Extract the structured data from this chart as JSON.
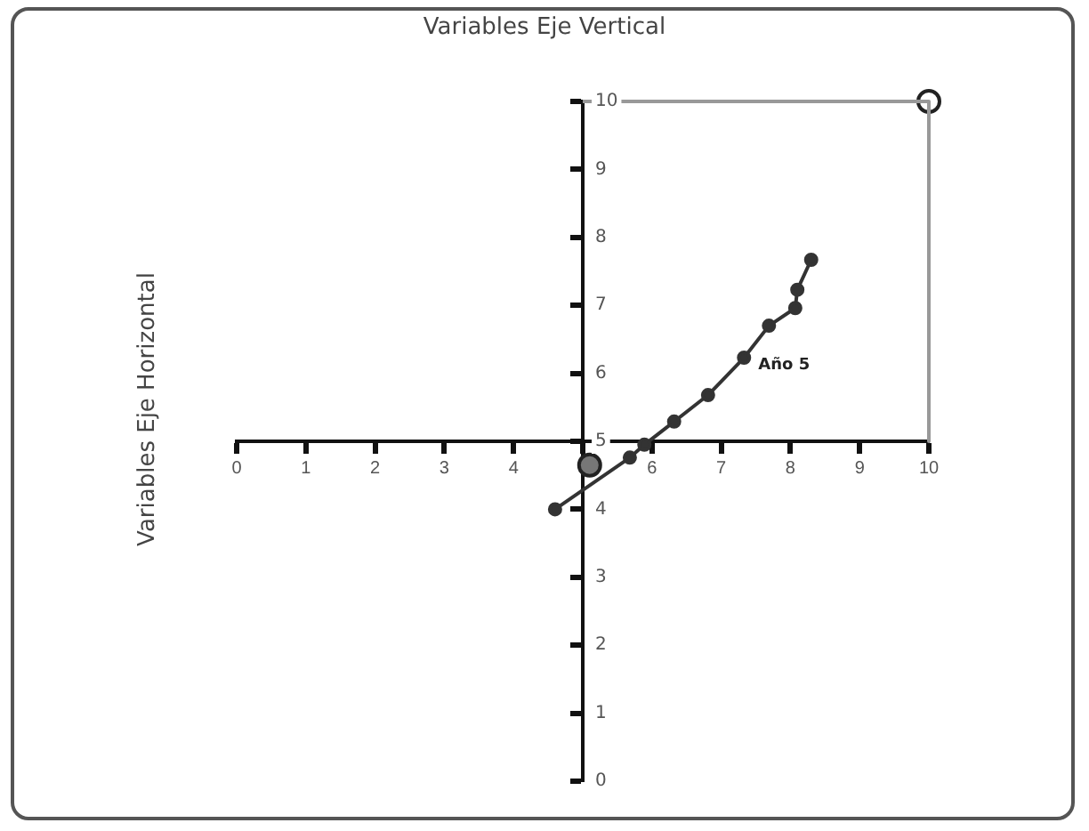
{
  "chart_data": {
    "type": "line",
    "title": "Variables Eje Vertical",
    "ylabel": "Variables Eje Horizontal",
    "xlim": [
      0,
      10
    ],
    "ylim": [
      0,
      10
    ],
    "xticks": [
      0,
      1,
      2,
      3,
      4,
      5,
      6,
      7,
      8,
      9,
      10
    ],
    "yticks": [
      0,
      1,
      2,
      3,
      4,
      5,
      6,
      7,
      8,
      9,
      10
    ],
    "series": [
      {
        "color": "#333333",
        "marker": "circle",
        "x": [
          4.6,
          5.68,
          5.89,
          6.32,
          6.81,
          7.33,
          7.69,
          8.07,
          8.1,
          8.3
        ],
        "values": [
          4.0,
          4.76,
          4.95,
          5.29,
          5.68,
          6.23,
          6.7,
          6.96,
          7.23,
          7.67
        ]
      },
      {
        "type": "scatter",
        "color": "#777777",
        "marker": "circle",
        "x": [
          5.1
        ],
        "values": [
          4.65
        ]
      },
      {
        "type": "line",
        "color": "#999999",
        "marker": "none",
        "x": [
          5,
          10,
          10
        ],
        "values": [
          10,
          10,
          5
        ]
      },
      {
        "type": "scatter",
        "color": "#222222",
        "marker": "circle",
        "x": [
          10
        ],
        "values": [
          10
        ]
      }
    ],
    "annotations": [
      {
        "text": "Año 5",
        "x": 7.33,
        "y": 6.23
      }
    ]
  }
}
